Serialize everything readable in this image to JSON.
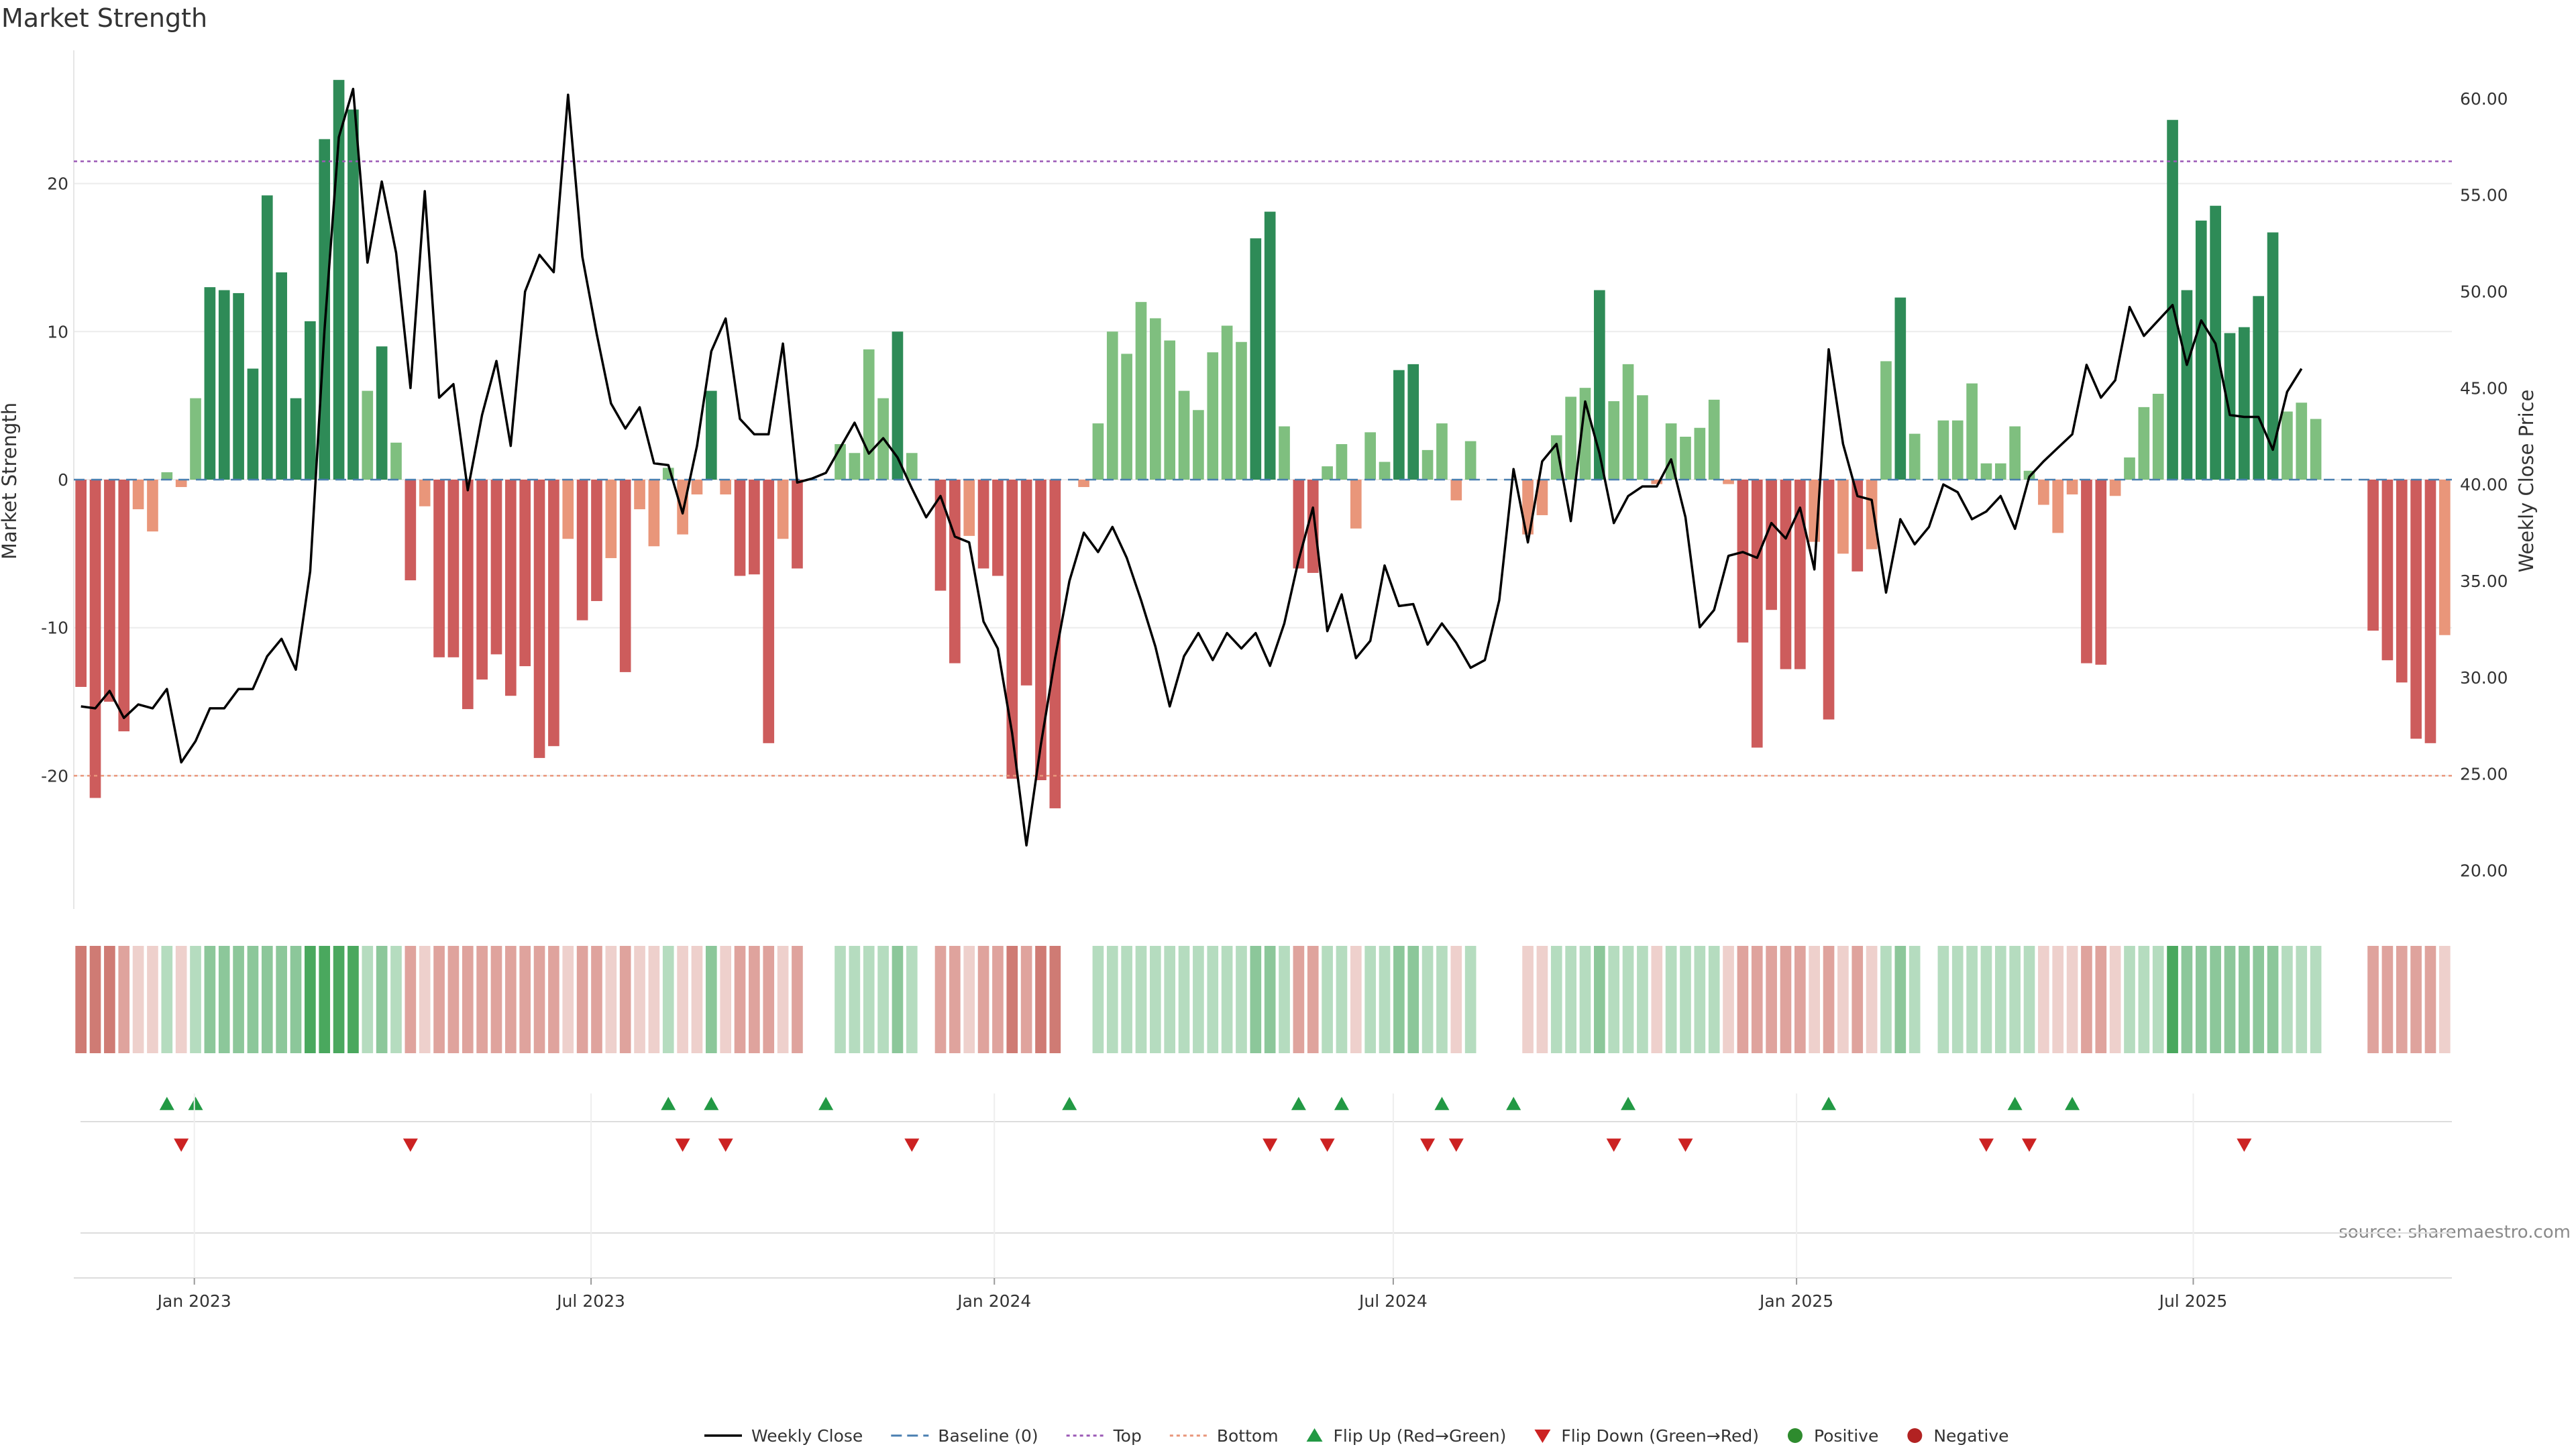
{
  "chart_data": {
    "type": "bar",
    "title": "Market Strength",
    "ylabel_left": "Market Strength",
    "ylabel_right": "Weekly Close Price",
    "source": "source: sharemaestro.com",
    "ylim_left": [
      -29,
      29
    ],
    "ylim_right": [
      18.0,
      62.5
    ],
    "yticks_left": [
      "20",
      "10",
      "0",
      "-10",
      "-20"
    ],
    "yticks_left_values": [
      20,
      10,
      0,
      -10,
      -20
    ],
    "yticks_right": [
      "60.00",
      "55.00",
      "50.00",
      "45.00",
      "40.00",
      "35.00",
      "30.00",
      "25.00",
      "20.00"
    ],
    "yticks_right_values": [
      60,
      55,
      50,
      45,
      40,
      35,
      30,
      25,
      20
    ],
    "x_start": "2022-11-07",
    "x_end": "2025-10-27",
    "xticks": [
      {
        "label": "Jan 2023",
        "date": "2023-01-01"
      },
      {
        "label": "Jul 2023",
        "date": "2023-07-01"
      },
      {
        "label": "Jan 2024",
        "date": "2024-01-01"
      },
      {
        "label": "Jul 2024",
        "date": "2024-07-01"
      },
      {
        "label": "Jan 2025",
        "date": "2025-01-01"
      },
      {
        "label": "Jul 2025",
        "date": "2025-07-01"
      }
    ],
    "top_line": 21.5,
    "bottom_line": -20,
    "strength": [
      -14,
      -21.5,
      -15,
      -17,
      -2,
      -3.5,
      0.5,
      -0.5,
      5.5,
      13,
      12.8,
      12.6,
      7.5,
      19.2,
      14,
      5.5,
      10.7,
      23,
      27,
      25,
      6,
      9,
      2.5,
      -6.8,
      -1.8,
      -12,
      -12,
      -15.5,
      -13.5,
      -11.8,
      -14.6,
      -12.6,
      -18.8,
      -18,
      -4,
      -9.5,
      -8.2,
      -5.3,
      -13,
      -2,
      -4.5,
      0.8,
      -3.7,
      -1,
      6,
      -1,
      -6.5,
      -6.4,
      -17.8,
      -4,
      -6,
      0,
      0,
      2.4,
      1.8,
      8.8,
      5.5,
      10,
      1.8,
      0,
      -7.5,
      -12.4,
      -3.8,
      -6,
      -6.5,
      -20.2,
      -13.9,
      -20.3,
      -22.2,
      0,
      -0.5,
      3.8,
      10,
      8.5,
      12,
      10.9,
      9.4,
      6,
      4.7,
      8.6,
      10.4,
      9.3,
      16.3,
      18.1,
      3.6,
      -6,
      -6.3,
      0.9,
      2.4,
      -3.3,
      3.2,
      1.2,
      7.4,
      7.8,
      2,
      3.8,
      -1.4,
      2.6,
      0,
      0,
      0,
      -3.7,
      -2.4,
      3,
      5.6,
      6.2,
      12.8,
      5.3,
      7.8,
      5.7,
      -0.3,
      3.8,
      2.9,
      3.5,
      5.4,
      -0.3,
      -11,
      -18.1,
      -8.8,
      -12.8,
      -12.8,
      -4.2,
      -16.2,
      -5,
      -6.2,
      -4.7,
      8,
      12.3,
      3.1,
      0,
      4,
      4,
      6.5,
      1.1,
      1.1,
      3.6,
      0.6,
      -1.7,
      -3.6,
      -1,
      -12.4,
      -12.5,
      -1.1,
      1.5,
      4.9,
      5.8,
      24.3,
      12.8,
      17.5,
      18.5,
      9.9,
      10.3,
      12.4,
      16.7,
      4.6,
      5.2,
      4.1,
      0,
      0,
      0,
      -10.2,
      -12.2,
      -13.7,
      -17.5,
      -17.8,
      -10.5
    ],
    "close": [
      28.5,
      28.4,
      29.3,
      27.9,
      28.6,
      28.4,
      29.4,
      25.6,
      26.7,
      28.4,
      28.4,
      29.4,
      29.4,
      31.1,
      32.0,
      30.4,
      35.5,
      48.0,
      58.0,
      60.5,
      51.5,
      55.7,
      52.0,
      45.0,
      55.2,
      44.5,
      45.2,
      39.7,
      43.6,
      46.4,
      42.0,
      50.0,
      51.9,
      51.0,
      60.2,
      51.8,
      47.8,
      44.2,
      42.9,
      44.0,
      41.1,
      41.0,
      38.5,
      42.0,
      46.9,
      48.6,
      43.4,
      42.6,
      42.6,
      47.3,
      40.1,
      40.3,
      40.6,
      41.9,
      43.2,
      41.6,
      42.4,
      41.4,
      39.8,
      38.3,
      39.4,
      37.3,
      37.0,
      32.9,
      31.5,
      27.1,
      21.3,
      26.5,
      31.0,
      35.0,
      37.5,
      36.5,
      37.8,
      36.2,
      34.0,
      31.6,
      28.5,
      31.1,
      32.3,
      30.9,
      32.3,
      31.5,
      32.3,
      30.6,
      32.8,
      36.1,
      38.8,
      32.4,
      34.3,
      31.0,
      31.9,
      35.8,
      33.7,
      33.8,
      31.7,
      32.8,
      31.8,
      30.5,
      30.9,
      34.0,
      40.8,
      37.0,
      41.2,
      42.1,
      38.1,
      44.3,
      41.6,
      38.0,
      39.4,
      39.9,
      39.9,
      41.3,
      38.3,
      32.6,
      33.5,
      36.3,
      36.5,
      36.2,
      38.0,
      37.2,
      38.8,
      35.6,
      47.0,
      42.1,
      39.4,
      39.2,
      34.4,
      38.2,
      36.9,
      37.8,
      40.0,
      39.6,
      38.2,
      38.6,
      39.4,
      37.7,
      40.4,
      41.2,
      41.9,
      42.6,
      46.2,
      44.5,
      45.4,
      49.2,
      47.7,
      48.5,
      49.3,
      46.2,
      48.5,
      47.3,
      43.6,
      43.5,
      43.5,
      41.8,
      44.8,
      46.0
    ],
    "status": [
      -3,
      -3,
      -3,
      -2,
      -1,
      -1,
      1,
      -1,
      1,
      2,
      2,
      2,
      2,
      2,
      2,
      2,
      3,
      3,
      3,
      3,
      1,
      2,
      1,
      -2,
      -1,
      -2,
      -2,
      -2,
      -2,
      -2,
      -2,
      -2,
      -2,
      -2,
      -1,
      -2,
      -2,
      -1,
      -2,
      -1,
      -1,
      1,
      -1,
      -1,
      2,
      -1,
      -2,
      -2,
      -2,
      -1,
      -2,
      0,
      0,
      1,
      1,
      1,
      1,
      2,
      1,
      0,
      -2,
      -2,
      -1,
      -2,
      -2,
      -3,
      -2,
      -3,
      -3,
      0,
      0,
      1,
      1,
      1,
      1,
      1,
      1,
      1,
      1,
      1,
      1,
      1,
      2,
      2,
      1,
      -2,
      -2,
      1,
      1,
      -1,
      1,
      1,
      2,
      2,
      1,
      1,
      -1,
      1,
      0,
      0,
      0,
      -1,
      -1,
      1,
      1,
      1,
      2,
      1,
      1,
      1,
      -1,
      1,
      1,
      1,
      1,
      -1,
      -2,
      -2,
      -2,
      -2,
      -2,
      -1,
      -2,
      -1,
      -2,
      -1,
      1,
      2,
      1,
      0,
      1,
      1,
      1,
      1,
      1,
      1,
      1,
      -1,
      -1,
      -1,
      -2,
      -2,
      -1,
      1,
      1,
      1,
      3,
      2,
      2,
      2,
      2,
      2,
      2,
      2,
      1,
      1,
      1,
      0,
      0,
      0,
      -2,
      -2,
      -2,
      -2,
      -2,
      -1
    ],
    "flip_up_weeks": [
      6,
      8,
      41,
      44,
      52,
      69,
      85,
      88,
      95,
      100,
      108,
      122,
      135,
      139
    ],
    "flip_down_weeks": [
      7,
      23,
      42,
      45,
      58,
      83,
      87,
      94,
      96,
      107,
      112,
      133,
      136,
      151
    ],
    "colors": {
      "strong_green": "#2e8b57",
      "light_green": "#7fbf7f",
      "strong_red": "#cd5c5c",
      "light_red": "#e9967a",
      "price_line": "#000000",
      "baseline": "#4a7fb0",
      "top_line": "#9b59b6",
      "bottom_line": "#e9967a",
      "flip_up": "#229944",
      "flip_down": "#cc2222",
      "positive": "#2e8b2e",
      "negative": "#b22222"
    },
    "legend": [
      {
        "label": "Weekly Close",
        "kind": "line",
        "color": "#000000"
      },
      {
        "label": "Baseline (0)",
        "kind": "dashed",
        "color": "#4a7fb0"
      },
      {
        "label": "Top",
        "kind": "dotted",
        "color": "#9b59b6"
      },
      {
        "label": "Bottom",
        "kind": "dotted",
        "color": "#e9967a"
      },
      {
        "label": "Flip Up (Red→Green)",
        "kind": "triangle-up",
        "color": "#229944"
      },
      {
        "label": "Flip Down (Green→Red)",
        "kind": "triangle-down",
        "color": "#cc2222"
      },
      {
        "label": "Positive",
        "kind": "circle",
        "color": "#2e8b2e"
      },
      {
        "label": "Negative",
        "kind": "circle",
        "color": "#b22222"
      }
    ],
    "legend_position": "bottom-center",
    "grid": true
  }
}
